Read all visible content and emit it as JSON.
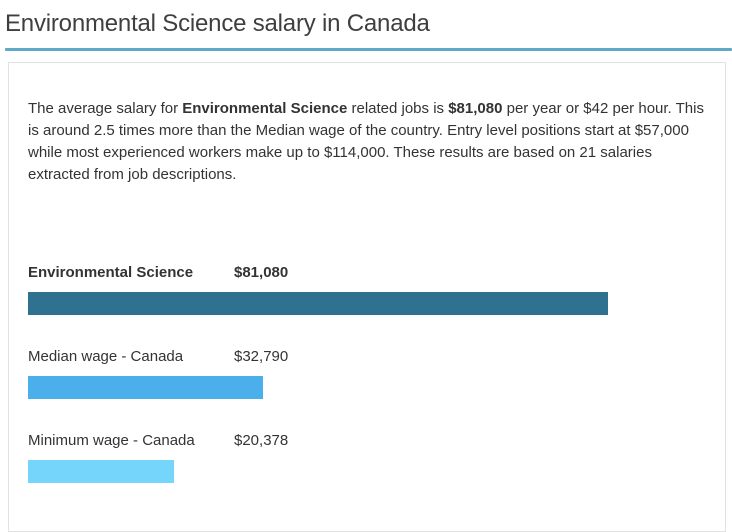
{
  "page": {
    "title": "Environmental Science salary in Canada"
  },
  "colors": {
    "title_underline": "#5fa9c7",
    "card_border": "#e1e1e1",
    "body_text": "#333333"
  },
  "card": {
    "paragraph_segments": [
      {
        "text": "The average salary for ",
        "bold": false
      },
      {
        "text": "Environmental Science",
        "bold": true
      },
      {
        "text": " related jobs is ",
        "bold": false
      },
      {
        "text": "$81,080",
        "bold": true
      },
      {
        "text": " per year or $42 per hour. This is around 2.5 times more than the Median wage of the country. Entry level positions start at $57,000 while most experienced workers make up to $114,000. These results are based on 21 salaries extracted from job descriptions.",
        "bold": false
      }
    ]
  },
  "chart_data": {
    "type": "bar",
    "orientation": "horizontal",
    "title": "",
    "categories": [
      "Environmental Science",
      "Median wage - Canada",
      "Minimum wage - Canada"
    ],
    "values": [
      81080,
      32790,
      20378
    ],
    "value_labels": [
      "$81,080",
      "$32,790",
      "$20,378"
    ],
    "bar_colors": [
      "#2e7290",
      "#4bafec",
      "#75d5fb"
    ],
    "xlim": [
      0,
      81080
    ],
    "emphasized_category_index": 0,
    "grid": false,
    "legend": "none"
  }
}
